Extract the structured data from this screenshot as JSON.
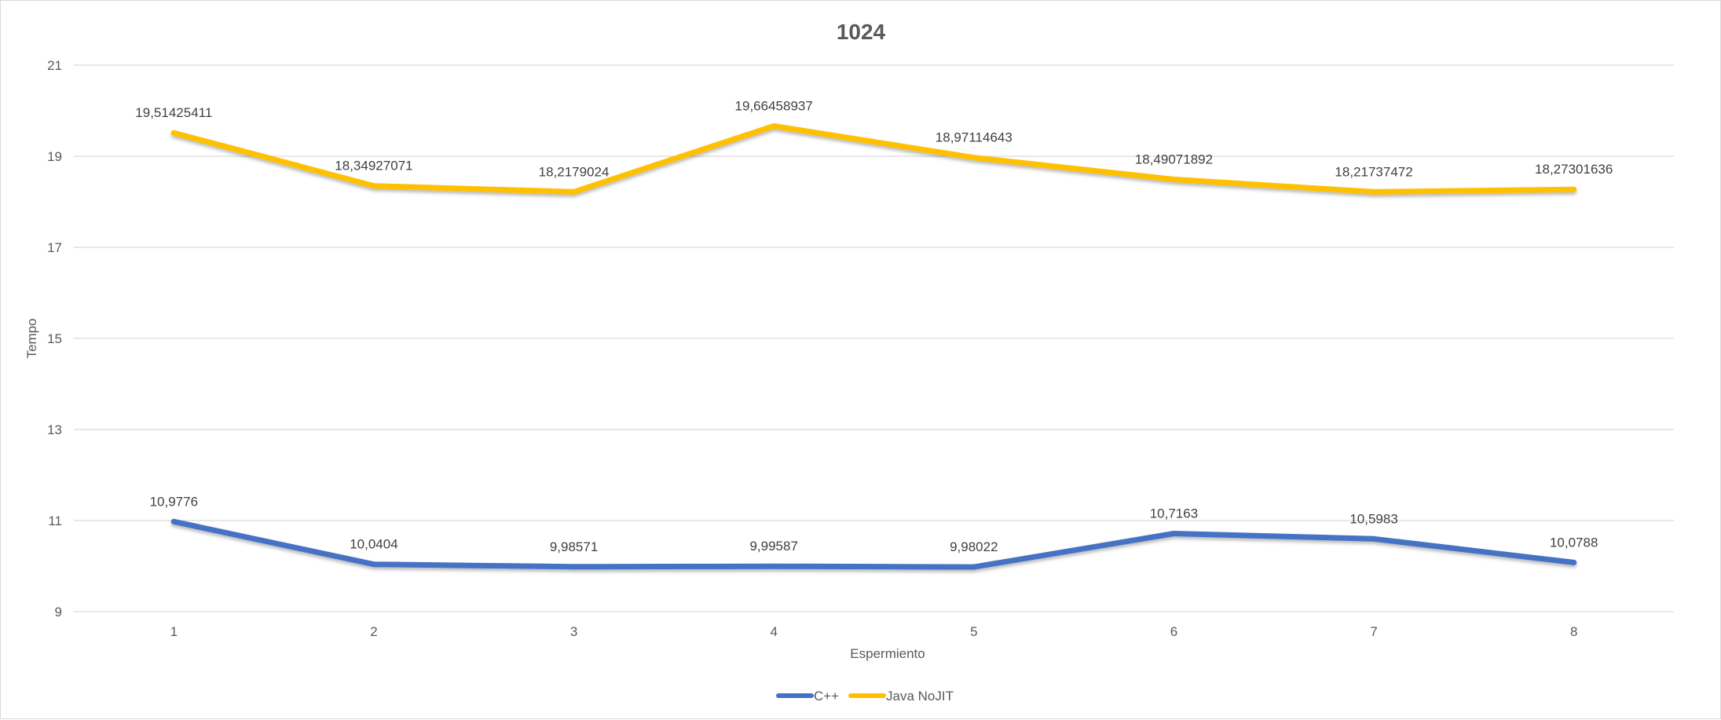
{
  "chart_data": {
    "type": "line",
    "title": "1024",
    "xlabel": "Espermiento",
    "ylabel": "Tempo",
    "categories": [
      "1",
      "2",
      "3",
      "4",
      "5",
      "6",
      "7",
      "8"
    ],
    "ylim": [
      9,
      21
    ],
    "yticks": [
      9,
      11,
      13,
      15,
      17,
      19,
      21
    ],
    "grid": true,
    "legend_position": "bottom",
    "series": [
      {
        "name": "C++",
        "color": "#4472c4",
        "values": [
          10.9776,
          10.0404,
          9.98571,
          9.99587,
          9.98022,
          10.7163,
          10.5983,
          10.0788
        ],
        "labels": [
          "10,9776",
          "10,0404",
          "9,98571",
          "9,99587",
          "9,98022",
          "10,7163",
          "10,5983",
          "10,0788"
        ]
      },
      {
        "name": "Java NoJIT",
        "color": "#ffc000",
        "values": [
          19.51425411,
          18.34927071,
          18.2179024,
          19.66458937,
          18.97114643,
          18.49071892,
          18.21737472,
          18.27301636
        ],
        "labels": [
          "19,51425411",
          "18,34927071",
          "18,2179024",
          "19,66458937",
          "18,97114643",
          "18,49071892",
          "18,21737472",
          "18,27301636"
        ]
      }
    ]
  }
}
